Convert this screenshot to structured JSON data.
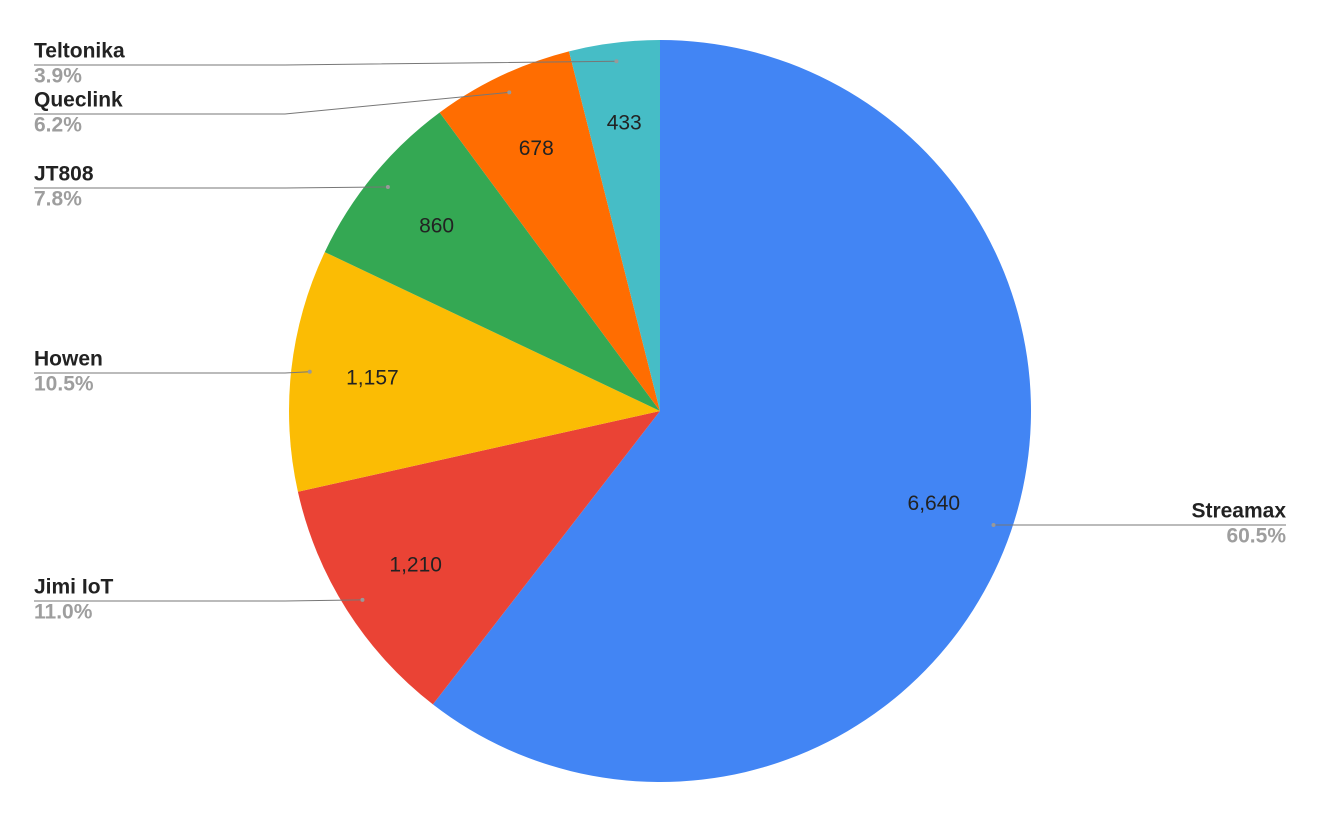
{
  "chart_data": {
    "type": "pie",
    "categories": [
      "Streamax",
      "Jimi IoT",
      "Howen",
      "JT808",
      "Queclink",
      "Teltonika"
    ],
    "values": [
      6640,
      1210,
      1157,
      860,
      678,
      433
    ],
    "value_labels": [
      "6,640",
      "1,210",
      "1,157",
      "860",
      "678",
      "433"
    ],
    "percentages": {
      "values": [
        60.5,
        11.0,
        10.5,
        7.8,
        6.2,
        3.9
      ],
      "value_labels": [
        "60.5%",
        "11.0%",
        "10.5%",
        "7.8%",
        "6.2%",
        "3.9%"
      ]
    },
    "colors": [
      "#4285f4",
      "#ea4335",
      "#fbbc04",
      "#34a853",
      "#ff6d01",
      "#46bdc6"
    ]
  }
}
